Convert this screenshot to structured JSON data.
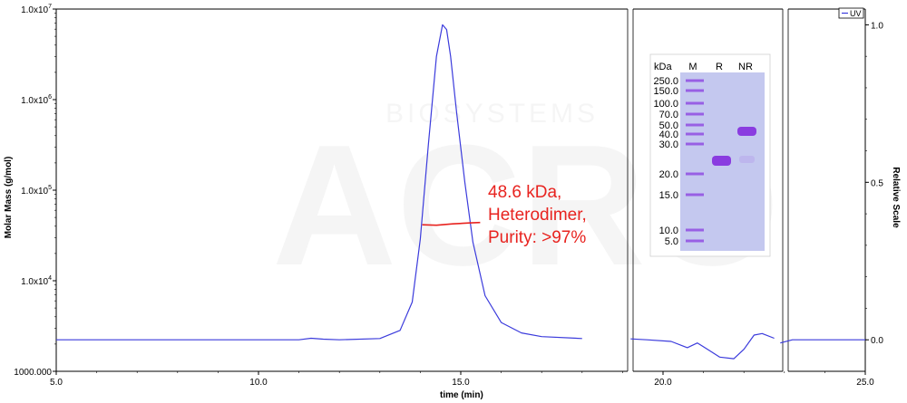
{
  "chart_data": {
    "type": "line",
    "xlabel": "time (min)",
    "ylabel_left": "Molar Mass (g/mol)",
    "ylabel_right": "Relative Scale",
    "xlim": [
      5.0,
      25.0
    ],
    "x_ticks": [
      "5.0",
      "10.0",
      "15.0",
      "20.0",
      "25.0"
    ],
    "y_left_scale": "log",
    "y_left_lim": [
      1000,
      10000000
    ],
    "y_left_ticks": [
      {
        "base": "1000.000",
        "exp": ""
      },
      {
        "base": "1.0x10",
        "exp": "4"
      },
      {
        "base": "1.0x10",
        "exp": "5"
      },
      {
        "base": "1.0x10",
        "exp": "6"
      },
      {
        "base": "1.0x10",
        "exp": "7"
      }
    ],
    "y_right_lim": [
      -0.1,
      1.05
    ],
    "y_right_ticks": [
      "0.0",
      "0.5",
      "1.0"
    ],
    "axis_breaks_at_x": [
      19.2,
      22.9
    ],
    "legend": "UV",
    "series": [
      {
        "name": "UV",
        "color": "#3b3bdc",
        "axis": "right",
        "x": [
          5.0,
          7.0,
          9.0,
          10.0,
          11.0,
          11.3,
          11.6,
          12.0,
          13.0,
          13.5,
          13.8,
          14.0,
          14.2,
          14.4,
          14.55,
          14.65,
          14.75,
          14.9,
          15.1,
          15.3,
          15.6,
          16.0,
          16.5,
          17.0,
          18.0,
          19.2,
          19.6,
          20.2,
          20.6,
          20.85,
          21.1,
          21.4,
          21.75,
          22.0,
          22.25,
          22.45,
          22.75,
          22.9,
          23.2,
          24.0,
          25.0
        ],
        "y": [
          0.0,
          0.0,
          0.0,
          0.0,
          0.0,
          0.005,
          0.002,
          0.0,
          0.004,
          0.03,
          0.12,
          0.32,
          0.62,
          0.9,
          1.0,
          0.985,
          0.9,
          0.72,
          0.5,
          0.31,
          0.14,
          0.055,
          0.022,
          0.01,
          0.004,
          0.003,
          0.0,
          -0.005,
          -0.025,
          -0.01,
          -0.03,
          -0.055,
          -0.06,
          -0.03,
          0.015,
          0.02,
          0.005,
          -0.01,
          0.0,
          0.0,
          0.0
        ]
      },
      {
        "name": "Molar Mass",
        "color": "#e8231f",
        "axis": "left",
        "x": [
          14.05,
          14.4,
          14.8,
          15.2,
          15.48
        ],
        "y": [
          41500,
          41000,
          42500,
          43500,
          44000
        ]
      }
    ],
    "annotations": [
      "48.6 kDa,",
      "Heterodimer,",
      "Purity: >97%"
    ]
  },
  "watermark": {
    "main": "ACRO",
    "sub": "BIOSYSTEMS"
  },
  "gel_inset": {
    "unit_label": "kDa",
    "lane_labels": [
      "M",
      "R",
      "NR"
    ],
    "markers": [
      "250.0",
      "150.0",
      "100.0",
      "70.0",
      "50.0",
      "40.0",
      "30.0",
      "20.0",
      "15.0",
      "10.0",
      "5.0"
    ],
    "band_color": "#8a3ce0",
    "background_color": "#c4c8ef"
  }
}
